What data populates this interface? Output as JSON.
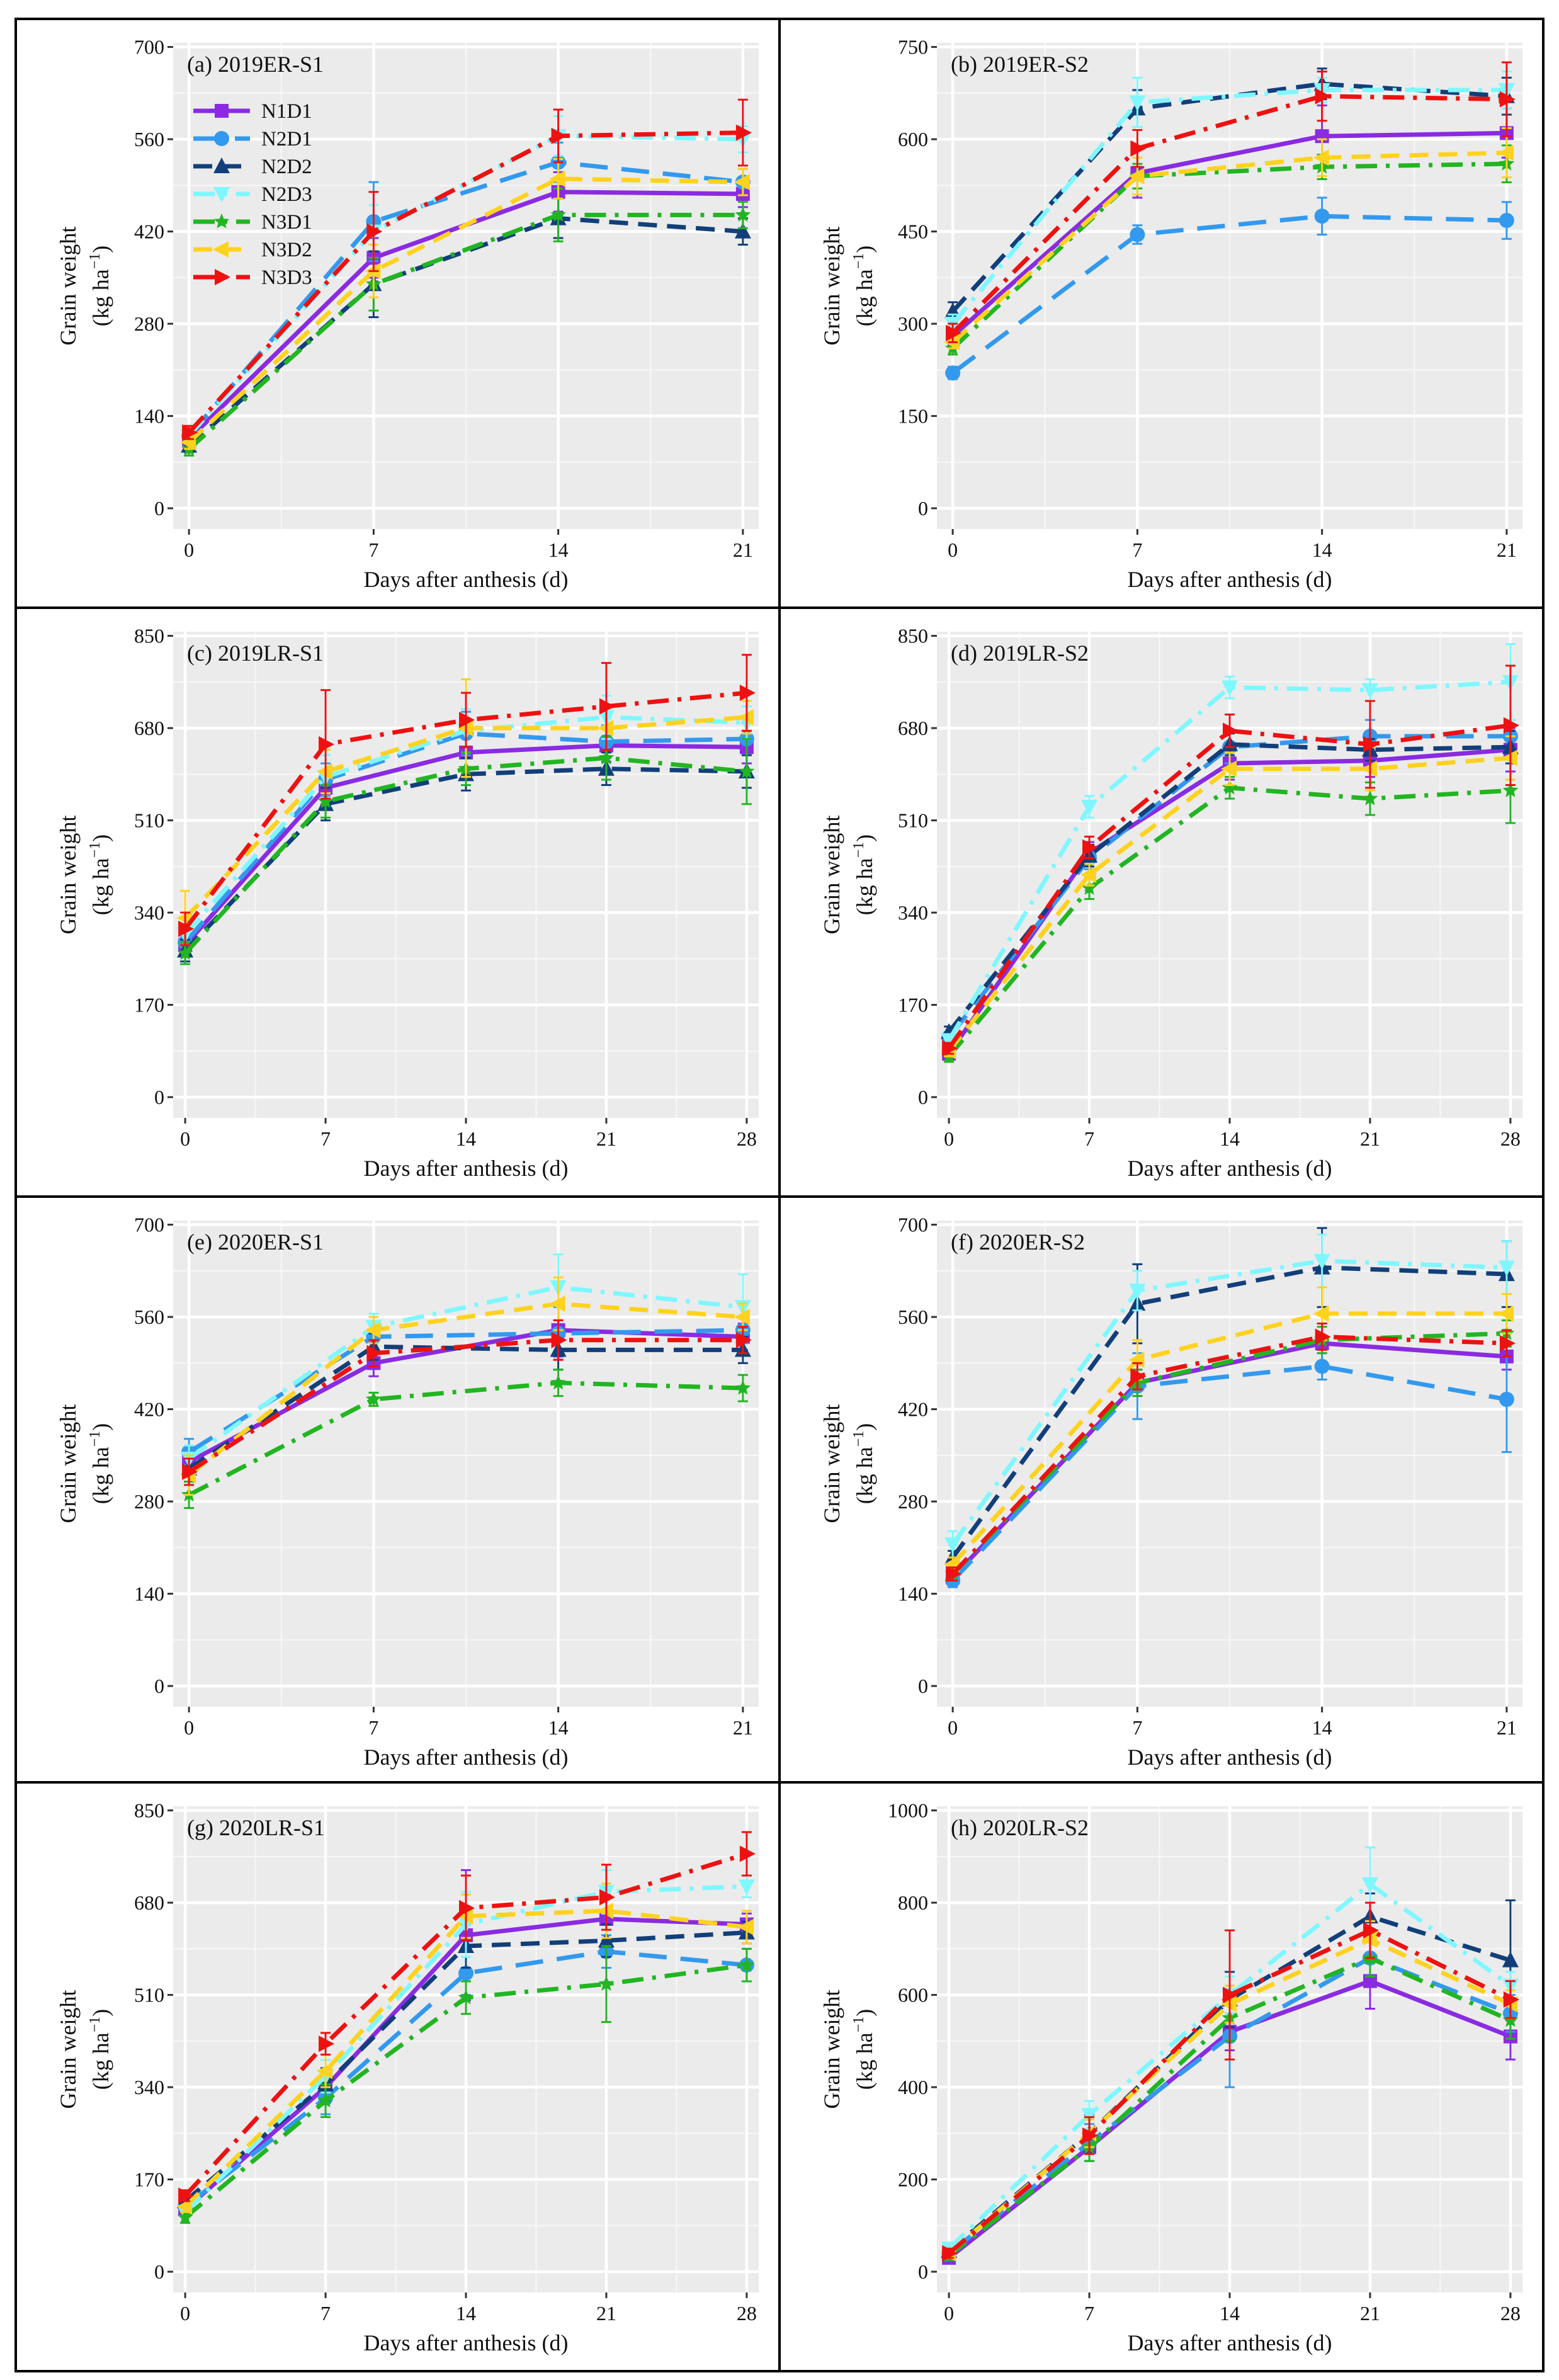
{
  "figure": {
    "panels_count": 8,
    "ylabel_line1": "Grain weight",
    "ylabel_line2_prefix": "(kg ha",
    "ylabel_sup": "−1",
    "ylabel_line2_suffix": ")",
    "xlabel": "Days after anthesis (d)"
  },
  "legend": {
    "entries": [
      {
        "name": "N1D1",
        "color": "#8a2be2",
        "dash": "solid",
        "marker": "square"
      },
      {
        "name": "N2D1",
        "color": "#3399ee",
        "dash": "longdash",
        "marker": "circle"
      },
      {
        "name": "N2D2",
        "color": "#123f7a",
        "dash": "dashed",
        "marker": "triangle-up"
      },
      {
        "name": "N2D3",
        "color": "#7ff7ff",
        "dash": "dashdot",
        "marker": "triangle-down"
      },
      {
        "name": "N3D1",
        "color": "#22b522",
        "dash": "dashdot",
        "marker": "star"
      },
      {
        "name": "N3D2",
        "color": "#ffd21f",
        "dash": "dashed",
        "marker": "triangle-left"
      },
      {
        "name": "N3D3",
        "color": "#ee1111",
        "dash": "dashdot",
        "marker": "triangle-right"
      }
    ]
  },
  "chart_data": [
    {
      "type": "line",
      "id": "a",
      "title": "(a) 2019ER-S1",
      "show_legend": true,
      "x": [
        0,
        7,
        14,
        21
      ],
      "ylim": [
        0,
        700
      ],
      "yticks": [
        0,
        140,
        280,
        420,
        560,
        700
      ],
      "xlabel": "Days after anthesis (d)",
      "ylabel": "Grain weight (kg ha−1)",
      "series": [
        {
          "name": "N1D1",
          "values": [
            105,
            380,
            480,
            477
          ],
          "err": [
            10,
            30,
            30,
            20
          ]
        },
        {
          "name": "N2D1",
          "values": [
            110,
            435,
            525,
            495
          ],
          "err": [
            10,
            60,
            30,
            20
          ]
        },
        {
          "name": "N2D2",
          "values": [
            95,
            340,
            440,
            420
          ],
          "err": [
            10,
            50,
            30,
            20
          ]
        },
        {
          "name": "N2D3",
          "values": [
            110,
            420,
            565,
            560
          ],
          "err": [
            10,
            40,
            30,
            20
          ]
        },
        {
          "name": "N3D1",
          "values": [
            90,
            340,
            445,
            445
          ],
          "err": [
            10,
            40,
            40,
            20
          ]
        },
        {
          "name": "N3D2",
          "values": [
            100,
            360,
            500,
            495
          ],
          "err": [
            10,
            40,
            30,
            20
          ]
        },
        {
          "name": "N3D3",
          "values": [
            115,
            420,
            565,
            570
          ],
          "err": [
            10,
            60,
            40,
            50
          ]
        }
      ]
    },
    {
      "type": "line",
      "id": "b",
      "title": "(b) 2019ER-S2",
      "show_legend": false,
      "x": [
        0,
        7,
        14,
        21
      ],
      "ylim": [
        0,
        750
      ],
      "yticks": [
        0,
        150,
        300,
        450,
        600,
        750
      ],
      "xlabel": "Days after anthesis (d)",
      "ylabel": "Grain weight (kg ha−1)",
      "series": [
        {
          "name": "N1D1",
          "values": [
            280,
            545,
            605,
            610
          ],
          "err": [
            15,
            40,
            50,
            40
          ]
        },
        {
          "name": "N2D1",
          "values": [
            220,
            445,
            475,
            468
          ],
          "err": [
            10,
            15,
            30,
            30
          ]
        },
        {
          "name": "N2D2",
          "values": [
            320,
            650,
            690,
            670
          ],
          "err": [
            15,
            30,
            25,
            30
          ]
        },
        {
          "name": "N2D3",
          "values": [
            300,
            660,
            680,
            680
          ],
          "err": [
            15,
            40,
            20,
            30
          ]
        },
        {
          "name": "N3D1",
          "values": [
            260,
            540,
            555,
            560
          ],
          "err": [
            10,
            20,
            20,
            30
          ]
        },
        {
          "name": "N3D2",
          "values": [
            270,
            540,
            570,
            578
          ],
          "err": [
            10,
            30,
            30,
            40
          ]
        },
        {
          "name": "N3D3",
          "values": [
            285,
            585,
            670,
            665
          ],
          "err": [
            15,
            30,
            40,
            60
          ]
        }
      ]
    },
    {
      "type": "line",
      "id": "c",
      "title": "(c) 2019LR-S1",
      "show_legend": false,
      "x": [
        0,
        7,
        14,
        21,
        28
      ],
      "ylim": [
        0,
        850
      ],
      "yticks": [
        0,
        170,
        340,
        510,
        680,
        850
      ],
      "xlabel": "Days after anthesis (d)",
      "ylabel": "Grain weight (kg ha−1)",
      "series": [
        {
          "name": "N1D1",
          "values": [
            280,
            570,
            635,
            648,
            645
          ],
          "err": [
            20,
            30,
            40,
            30,
            30
          ]
        },
        {
          "name": "N2D1",
          "values": [
            285,
            585,
            670,
            655,
            660
          ],
          "err": [
            20,
            30,
            40,
            30,
            30
          ]
        },
        {
          "name": "N2D2",
          "values": [
            270,
            540,
            595,
            605,
            600
          ],
          "err": [
            20,
            30,
            30,
            30,
            30
          ]
        },
        {
          "name": "N2D3",
          "values": [
            300,
            590,
            675,
            700,
            690
          ],
          "err": [
            20,
            40,
            40,
            40,
            30
          ]
        },
        {
          "name": "N3D1",
          "values": [
            265,
            545,
            605,
            625,
            600
          ],
          "err": [
            20,
            30,
            30,
            40,
            60
          ]
        },
        {
          "name": "N3D2",
          "values": [
            330,
            600,
            680,
            680,
            700
          ],
          "err": [
            50,
            40,
            90,
            40,
            30
          ]
        },
        {
          "name": "N3D3",
          "values": [
            310,
            650,
            695,
            720,
            745
          ],
          "err": [
            30,
            100,
            50,
            80,
            70
          ]
        }
      ]
    },
    {
      "type": "line",
      "id": "d",
      "title": "(d) 2019LR-S2",
      "show_legend": false,
      "x": [
        0,
        7,
        14,
        21,
        28
      ],
      "ylim": [
        0,
        850
      ],
      "yticks": [
        0,
        170,
        340,
        510,
        680,
        850
      ],
      "xlabel": "Days after anthesis (d)",
      "ylabel": "Grain weight (kg ha−1)",
      "series": [
        {
          "name": "N1D1",
          "values": [
            80,
            450,
            615,
            620,
            640
          ],
          "err": [
            10,
            20,
            30,
            30,
            40
          ]
        },
        {
          "name": "N2D1",
          "values": [
            110,
            440,
            645,
            665,
            665
          ],
          "err": [
            10,
            20,
            30,
            30,
            30
          ]
        },
        {
          "name": "N2D2",
          "values": [
            120,
            445,
            650,
            640,
            645
          ],
          "err": [
            10,
            20,
            20,
            20,
            30
          ]
        },
        {
          "name": "N2D3",
          "values": [
            105,
            535,
            755,
            750,
            765
          ],
          "err": [
            10,
            20,
            20,
            20,
            70
          ]
        },
        {
          "name": "N3D1",
          "values": [
            75,
            385,
            570,
            550,
            565
          ],
          "err": [
            10,
            20,
            20,
            30,
            60
          ]
        },
        {
          "name": "N3D2",
          "values": [
            85,
            410,
            605,
            605,
            625
          ],
          "err": [
            10,
            20,
            30,
            40,
            40
          ]
        },
        {
          "name": "N3D3",
          "values": [
            90,
            460,
            675,
            650,
            685
          ],
          "err": [
            10,
            20,
            30,
            80,
            110
          ]
        }
      ]
    },
    {
      "type": "line",
      "id": "e",
      "title": "(e) 2020ER-S1",
      "show_legend": false,
      "x": [
        0,
        7,
        14,
        21
      ],
      "ylim": [
        0,
        700
      ],
      "yticks": [
        0,
        140,
        280,
        420,
        560,
        700
      ],
      "xlabel": "Days after anthesis (d)",
      "ylabel": "Grain weight (kg ha−1)",
      "series": [
        {
          "name": "N1D1",
          "values": [
            340,
            490,
            540,
            530
          ],
          "err": [
            20,
            20,
            40,
            20
          ]
        },
        {
          "name": "N2D1",
          "values": [
            355,
            530,
            535,
            540
          ],
          "err": [
            20,
            20,
            40,
            20
          ]
        },
        {
          "name": "N2D2",
          "values": [
            330,
            515,
            510,
            510
          ],
          "err": [
            20,
            20,
            30,
            20
          ]
        },
        {
          "name": "N2D3",
          "values": [
            345,
            545,
            605,
            575
          ],
          "err": [
            20,
            20,
            50,
            50
          ]
        },
        {
          "name": "N3D1",
          "values": [
            290,
            435,
            460,
            452
          ],
          "err": [
            20,
            10,
            20,
            20
          ]
        },
        {
          "name": "N3D2",
          "values": [
            320,
            540,
            580,
            560
          ],
          "err": [
            30,
            20,
            40,
            20
          ]
        },
        {
          "name": "N3D3",
          "values": [
            325,
            505,
            525,
            525
          ],
          "err": [
            20,
            20,
            30,
            20
          ]
        }
      ]
    },
    {
      "type": "line",
      "id": "f",
      "title": "(f) 2020ER-S2",
      "show_legend": false,
      "x": [
        0,
        7,
        14,
        21
      ],
      "ylim": [
        0,
        700
      ],
      "yticks": [
        0,
        140,
        280,
        420,
        560,
        700
      ],
      "xlabel": "Days after anthesis (d)",
      "ylabel": "Grain weight (kg ha−1)",
      "series": [
        {
          "name": "N1D1",
          "values": [
            165,
            460,
            520,
            500
          ],
          "err": [
            10,
            20,
            30,
            20
          ]
        },
        {
          "name": "N2D1",
          "values": [
            160,
            455,
            485,
            435
          ],
          "err": [
            10,
            50,
            20,
            80
          ]
        },
        {
          "name": "N2D2",
          "values": [
            195,
            580,
            635,
            625
          ],
          "err": [
            10,
            60,
            60,
            50
          ]
        },
        {
          "name": "N2D3",
          "values": [
            215,
            600,
            645,
            635
          ],
          "err": [
            20,
            30,
            40,
            40
          ]
        },
        {
          "name": "N3D1",
          "values": [
            170,
            460,
            525,
            535
          ],
          "err": [
            10,
            20,
            20,
            20
          ]
        },
        {
          "name": "N3D2",
          "values": [
            185,
            495,
            565,
            565
          ],
          "err": [
            10,
            30,
            40,
            30
          ]
        },
        {
          "name": "N3D3",
          "values": [
            170,
            470,
            530,
            520
          ],
          "err": [
            10,
            20,
            20,
            20
          ]
        }
      ]
    },
    {
      "type": "line",
      "id": "g",
      "title": "(g) 2020LR-S1",
      "show_legend": false,
      "x": [
        0,
        7,
        14,
        21,
        28
      ],
      "ylim": [
        0,
        850
      ],
      "yticks": [
        0,
        170,
        340,
        510,
        680,
        850
      ],
      "xlabel": "Days after anthesis (d)",
      "ylabel": "Grain weight (kg ha−1)",
      "series": [
        {
          "name": "N1D1",
          "values": [
            115,
            340,
            620,
            650,
            640
          ],
          "err": [
            10,
            30,
            120,
            40,
            20
          ]
        },
        {
          "name": "N2D1",
          "values": [
            120,
            320,
            550,
            590,
            565
          ],
          "err": [
            10,
            30,
            40,
            30,
            30
          ]
        },
        {
          "name": "N2D2",
          "values": [
            130,
            345,
            600,
            610,
            625
          ],
          "err": [
            10,
            30,
            40,
            30,
            20
          ]
        },
        {
          "name": "N2D3",
          "values": [
            110,
            360,
            640,
            700,
            710
          ],
          "err": [
            10,
            30,
            60,
            40,
            20
          ]
        },
        {
          "name": "N3D1",
          "values": [
            100,
            315,
            505,
            530,
            565
          ],
          "err": [
            10,
            30,
            30,
            70,
            30
          ]
        },
        {
          "name": "N3D2",
          "values": [
            120,
            370,
            655,
            665,
            635
          ],
          "err": [
            10,
            30,
            40,
            50,
            30
          ]
        },
        {
          "name": "N3D3",
          "values": [
            140,
            420,
            670,
            690,
            770
          ],
          "err": [
            10,
            20,
            60,
            60,
            40
          ]
        }
      ]
    },
    {
      "type": "line",
      "id": "h",
      "title": "(h) 2020LR-S2",
      "show_legend": false,
      "x": [
        0,
        7,
        14,
        21,
        28
      ],
      "ylim": [
        0,
        1000
      ],
      "yticks": [
        0,
        200,
        400,
        600,
        800,
        1000
      ],
      "xlabel": "Days after anthesis (d)",
      "ylabel": "Grain weight (kg ha−1)",
      "series": [
        {
          "name": "N1D1",
          "values": [
            30,
            270,
            520,
            630,
            510
          ],
          "err": [
            10,
            30,
            40,
            60,
            50
          ]
        },
        {
          "name": "N2D1",
          "values": [
            40,
            280,
            510,
            680,
            560
          ],
          "err": [
            10,
            40,
            110,
            40,
            40
          ]
        },
        {
          "name": "N2D2",
          "values": [
            45,
            300,
            590,
            770,
            675
          ],
          "err": [
            10,
            40,
            60,
            50,
            130
          ]
        },
        {
          "name": "N2D3",
          "values": [
            50,
            340,
            600,
            840,
            620
          ],
          "err": [
            10,
            30,
            40,
            80,
            30
          ]
        },
        {
          "name": "N3D1",
          "values": [
            35,
            270,
            550,
            680,
            545
          ],
          "err": [
            10,
            30,
            50,
            40,
            40
          ]
        },
        {
          "name": "N3D2",
          "values": [
            40,
            300,
            580,
            720,
            580
          ],
          "err": [
            10,
            30,
            40,
            40,
            30
          ]
        },
        {
          "name": "N3D3",
          "values": [
            40,
            295,
            600,
            740,
            590
          ],
          "err": [
            10,
            40,
            140,
            60,
            40
          ]
        }
      ]
    }
  ]
}
